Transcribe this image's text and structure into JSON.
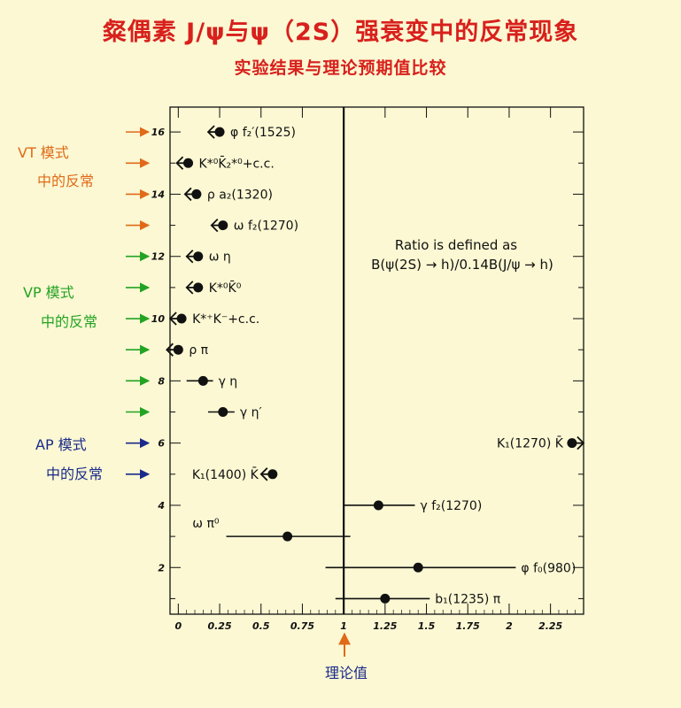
{
  "title": "粲偶素 J/ψ与ψ（2S）强衰变中的反常现象",
  "subtitle": "实验结果与理论预期值比较",
  "chart_data": {
    "type": "scatter",
    "orientation": "horizontal",
    "xlim": [
      -0.05,
      2.45
    ],
    "ylim": [
      0.5,
      16.8
    ],
    "x_ticks": [
      "0",
      "0.25",
      "0.5",
      "0.75",
      "1",
      "1.25",
      "1.5",
      "1.75",
      "2",
      "2.25"
    ],
    "y_ticks": [
      "2",
      "4",
      "6",
      "8",
      "10",
      "12",
      "14",
      "16"
    ],
    "reference_line": 1,
    "reference_label": "理论值",
    "annotation": [
      "Ratio is defined as",
      "B(ψ(2S) → h)/0.14B(J/ψ → h)"
    ],
    "groups": [
      {
        "name": "VT 模式",
        "name2": "中的反常",
        "color": "#e06a18",
        "rows": [
          16,
          15,
          14,
          13
        ]
      },
      {
        "name": "VP 模式",
        "name2": "中的反常",
        "color": "#23a323",
        "rows": [
          12,
          11,
          10,
          9,
          8,
          7
        ]
      },
      {
        "name": "AP 模式",
        "name2": "中的反常",
        "color": "#1b2a8a",
        "rows": [
          6,
          5
        ]
      }
    ],
    "points": [
      {
        "label": "φ f₂′(1525)",
        "y": 16,
        "x": 0.25,
        "upper_limit": true
      },
      {
        "label": "K*⁰K̄₂*⁰+c.c.",
        "y": 15,
        "x": 0.06,
        "upper_limit": true
      },
      {
        "label": "ρ a₂(1320)",
        "y": 14,
        "x": 0.11,
        "upper_limit": true
      },
      {
        "label": "ω f₂(1270)",
        "y": 13,
        "x": 0.27,
        "upper_limit": true
      },
      {
        "label": "ω η",
        "y": 12,
        "x": 0.12,
        "upper_limit": true
      },
      {
        "label": "K*⁰K̄⁰",
        "y": 11,
        "x": 0.12,
        "upper_limit": true
      },
      {
        "label": "K*⁺K⁻+c.c.",
        "y": 10,
        "x": 0.02,
        "upper_limit": true
      },
      {
        "label": "ρ π",
        "y": 9,
        "x": 0.0,
        "upper_limit": true
      },
      {
        "label": "γ η",
        "y": 8,
        "x": 0.15,
        "xerr_low": 0.1,
        "xerr_high": 0.06
      },
      {
        "label": "γ η′",
        "y": 7,
        "x": 0.27,
        "xerr_low": 0.09,
        "xerr_high": 0.07
      },
      {
        "label": "K₁(1270) K̄",
        "y": 6,
        "x": 2.38,
        "lower_limit": true
      },
      {
        "label": "K₁(1400) K̄",
        "y": 5,
        "x": 0.57,
        "upper_limit": true
      },
      {
        "label": "γ f₂(1270)",
        "y": 4,
        "x": 1.21,
        "xerr_low": 0.21,
        "xerr_high": 0.22
      },
      {
        "label": "ω π⁰",
        "y": 3,
        "x": 0.66,
        "xerr_low": 0.37,
        "xerr_high": 0.38
      },
      {
        "label": "φ f₀(980)",
        "y": 2,
        "x": 1.45,
        "xerr_low": 0.56,
        "xerr_high": 0.59
      },
      {
        "label": "b₁(1235) π",
        "y": 1,
        "x": 1.25,
        "xerr_low": 0.3,
        "xerr_high": 0.27
      }
    ]
  }
}
